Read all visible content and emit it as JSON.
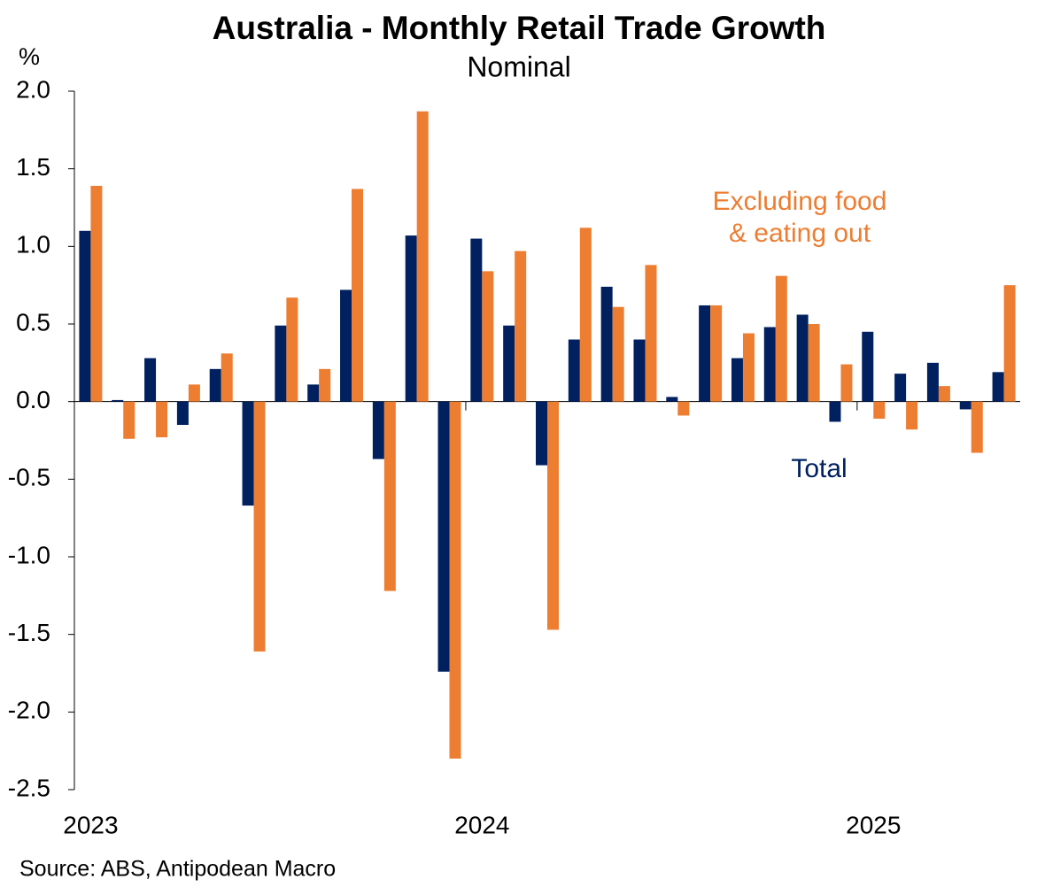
{
  "chart_data": {
    "type": "bar",
    "title": "Australia - Monthly Retail Trade Growth",
    "subtitle": "Nominal",
    "y_label": "%",
    "source": "Source: ABS, Antipodean Macro",
    "categories": [
      "2023",
      null,
      null,
      null,
      null,
      null,
      null,
      null,
      null,
      null,
      null,
      null,
      "2024",
      null,
      null,
      null,
      null,
      null,
      null,
      null,
      null,
      null,
      null,
      null,
      "2025",
      null,
      null,
      null,
      null
    ],
    "series": [
      {
        "color": "#002060",
        "values": [
          1.1,
          0.01,
          0.28,
          -0.15,
          0.21,
          -0.67,
          0.49,
          0.11,
          0.72,
          -0.37,
          1.07,
          -1.74,
          1.05,
          0.49,
          -0.41,
          0.4,
          0.74,
          0.4,
          0.03,
          0.62,
          0.28,
          0.48,
          0.56,
          -0.13,
          0.45,
          0.18,
          0.25,
          -0.05,
          0.19
        ]
      },
      {
        "color": "#ED7D31",
        "values": [
          1.39,
          -0.24,
          -0.23,
          0.11,
          0.31,
          -1.61,
          0.67,
          0.21,
          1.37,
          -1.22,
          1.87,
          -2.3,
          0.84,
          0.97,
          -1.47,
          1.12,
          0.61,
          0.88,
          -0.09,
          0.62,
          0.44,
          0.81,
          0.5,
          0.24,
          -0.11,
          -0.18,
          0.1,
          -0.33,
          0.75
        ]
      }
    ],
    "annotations": [
      {
        "lines": [
          "Excluding food",
          "& eating out"
        ],
        "color": "#ED7D31"
      },
      {
        "lines": [
          "Total"
        ],
        "color": "#002060"
      }
    ],
    "ylim": [
      -2.5,
      2.0
    ],
    "yticks": [
      {
        "value": -2.5,
        "label": "-2.5"
      },
      {
        "value": -2.0,
        "label": "-2.0"
      },
      {
        "value": -1.5,
        "label": "-1.5"
      },
      {
        "value": -1.0,
        "label": "-1.0"
      },
      {
        "value": -0.5,
        "label": "-0.5"
      },
      {
        "value": 0,
        "label": "0.0"
      },
      {
        "value": 0.5,
        "label": "0.5"
      },
      {
        "value": 1.0,
        "label": "1.0"
      },
      {
        "value": 1.5,
        "label": "1.5"
      },
      {
        "value": 2.0,
        "label": "2.0"
      }
    ],
    "grid": false
  }
}
